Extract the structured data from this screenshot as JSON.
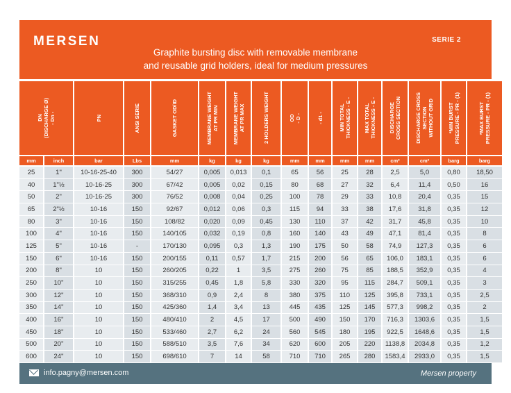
{
  "brand": {
    "logo": "MERSEN",
    "serie": "SERIE 2"
  },
  "title": {
    "line1": "Graphite bursting disc with removable membrane",
    "line2": "and reusable grid holders, ideal for medium pressures"
  },
  "table": {
    "headers": [
      "DN\n(DISCHARGE Ø)\n- Dn -",
      "PN",
      "ANSI SERIE",
      "GASKET OD/ID",
      "MEMBRANE WEIGHT\nAT PR MIN",
      "MEMBRANE WEIGHT\nAT PR MAX",
      "2 HOLDERS WEIGHT",
      "OD\n- D -",
      "- d1 -",
      "MIN TOTAL\nTHICKNESS - E -",
      "MAX TOTAL\nTHICKNESS - E -",
      "DISCHARGE\nCROSS SECTION",
      "DISCHARGE CROSS\nSECTION\nWITHOUT GRID",
      "*MIN BURST\nPRESSURE - PR - (1)",
      "*MAX BURST\nPRESSURE - PR - (1)"
    ],
    "units": [
      "mm",
      "inch",
      "bar",
      "Lbs",
      "mm",
      "kg",
      "kg",
      "kg",
      "mm",
      "mm",
      "mm",
      "mm",
      "cm²",
      "cm²",
      "barg",
      "barg"
    ],
    "rows": [
      [
        "25",
        "1\"",
        "10-16-25-40",
        "300",
        "54/27",
        "0,005",
        "0,013",
        "0,1",
        "65",
        "56",
        "25",
        "28",
        "2,5",
        "5,0",
        "0,80",
        "18,50"
      ],
      [
        "40",
        "1\"½",
        "10-16-25",
        "300",
        "67/42",
        "0,005",
        "0,02",
        "0,15",
        "80",
        "68",
        "27",
        "32",
        "6,4",
        "11,4",
        "0,50",
        "16"
      ],
      [
        "50",
        "2\"",
        "10-16-25",
        "300",
        "76/52",
        "0,008",
        "0,04",
        "0,25",
        "100",
        "78",
        "29",
        "33",
        "10,8",
        "20,4",
        "0,35",
        "15"
      ],
      [
        "65",
        "2\"½",
        "10-16",
        "150",
        "92/67",
        "0,012",
        "0,06",
        "0,3",
        "115",
        "94",
        "33",
        "38",
        "17,6",
        "31,8",
        "0,35",
        "12"
      ],
      [
        "80",
        "3\"",
        "10-16",
        "150",
        "108/82",
        "0,020",
        "0,09",
        "0,45",
        "130",
        "110",
        "37",
        "42",
        "31,7",
        "45,8",
        "0,35",
        "10"
      ],
      [
        "100",
        "4\"",
        "10-16",
        "150",
        "140/105",
        "0,032",
        "0,19",
        "0,8",
        "160",
        "140",
        "43",
        "49",
        "47,1",
        "81,4",
        "0,35",
        "8"
      ],
      [
        "125",
        "5\"",
        "10-16",
        "-",
        "170/130",
        "0,095",
        "0,3",
        "1,3",
        "190",
        "175",
        "50",
        "58",
        "74,9",
        "127,3",
        "0,35",
        "6"
      ],
      [
        "150",
        "6\"",
        "10-16",
        "150",
        "200/155",
        "0,11",
        "0,57",
        "1,7",
        "215",
        "200",
        "56",
        "65",
        "106,0",
        "183,1",
        "0,35",
        "6"
      ],
      [
        "200",
        "8\"",
        "10",
        "150",
        "260/205",
        "0,22",
        "1",
        "3,5",
        "275",
        "260",
        "75",
        "85",
        "188,5",
        "352,9",
        "0,35",
        "4"
      ],
      [
        "250",
        "10\"",
        "10",
        "150",
        "315/255",
        "0,45",
        "1,8",
        "5,8",
        "330",
        "320",
        "95",
        "115",
        "284,7",
        "509,1",
        "0,35",
        "3"
      ],
      [
        "300",
        "12\"",
        "10",
        "150",
        "368/310",
        "0,9",
        "2,4",
        "8",
        "380",
        "375",
        "110",
        "125",
        "395,8",
        "733,1",
        "0,35",
        "2,5"
      ],
      [
        "350",
        "14\"",
        "10",
        "150",
        "425/360",
        "1,4",
        "3,4",
        "13",
        "445",
        "435",
        "125",
        "145",
        "577,3",
        "998,2",
        "0,35",
        "2"
      ],
      [
        "400",
        "16\"",
        "10",
        "150",
        "480/410",
        "2",
        "4,5",
        "17",
        "500",
        "490",
        "150",
        "170",
        "716,3",
        "1303,6",
        "0,35",
        "1,5"
      ],
      [
        "450",
        "18\"",
        "10",
        "150",
        "533/460",
        "2,7",
        "6,2",
        "24",
        "560",
        "545",
        "180",
        "195",
        "922,5",
        "1648,6",
        "0,35",
        "1,5"
      ],
      [
        "500",
        "20\"",
        "10",
        "150",
        "588/510",
        "3,5",
        "7,6",
        "34",
        "620",
        "600",
        "205",
        "220",
        "1138,8",
        "2034,8",
        "0,35",
        "1,2"
      ],
      [
        "600",
        "24\"",
        "10",
        "150",
        "698/610",
        "7",
        "14",
        "58",
        "710",
        "710",
        "265",
        "280",
        "1583,4",
        "2933,0",
        "0,35",
        "1,5"
      ]
    ]
  },
  "footer": {
    "email": "info.pagny@mersen.com",
    "property": "Mersen property",
    "icon": "envelope-icon"
  },
  "colors": {
    "accent": "#ec5a22",
    "footer": "#55727f",
    "row_dark": "#d9dfe4",
    "row_light": "#e8ecef"
  }
}
